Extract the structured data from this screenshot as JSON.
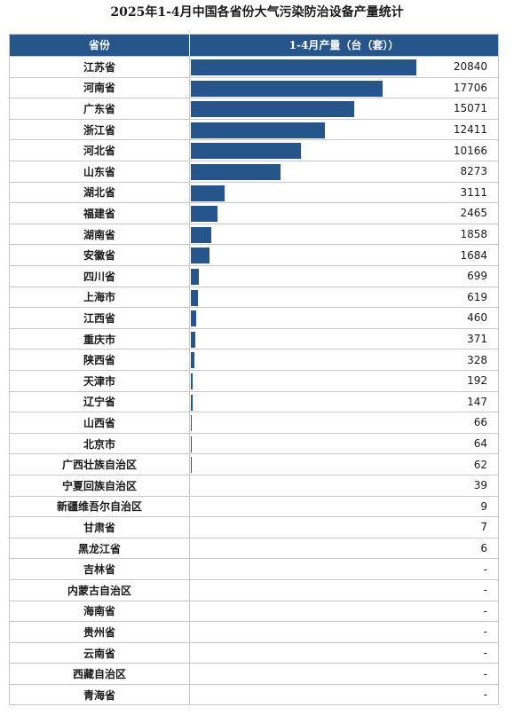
{
  "title": "2025年1-4月中国各省份大气污染防治设备产量统计",
  "table": {
    "col_province": "省份",
    "col_value": "1-4月产量（台（套））"
  },
  "colors": {
    "bar": "#25558a",
    "header": "#25558a"
  },
  "chart_data": {
    "type": "bar",
    "orientation": "horizontal",
    "title": "2025年1-4月中国各省份大气污染防治设备产量统计",
    "xlabel": "1-4月产量（台（套））",
    "ylabel": "省份",
    "xlim": [
      0,
      20840
    ],
    "rows": [
      {
        "province": "江苏省",
        "value": 20840,
        "label": "20840"
      },
      {
        "province": "河南省",
        "value": 17706,
        "label": "17706"
      },
      {
        "province": "广东省",
        "value": 15071,
        "label": "15071"
      },
      {
        "province": "浙江省",
        "value": 12411,
        "label": "12411"
      },
      {
        "province": "河北省",
        "value": 10166,
        "label": "10166"
      },
      {
        "province": "山东省",
        "value": 8273,
        "label": "8273"
      },
      {
        "province": "湖北省",
        "value": 3111,
        "label": "3111"
      },
      {
        "province": "福建省",
        "value": 2465,
        "label": "2465"
      },
      {
        "province": "湖南省",
        "value": 1858,
        "label": "1858"
      },
      {
        "province": "安徽省",
        "value": 1684,
        "label": "1684"
      },
      {
        "province": "四川省",
        "value": 699,
        "label": "699"
      },
      {
        "province": "上海市",
        "value": 619,
        "label": "619"
      },
      {
        "province": "江西省",
        "value": 460,
        "label": "460"
      },
      {
        "province": "重庆市",
        "value": 371,
        "label": "371"
      },
      {
        "province": "陕西省",
        "value": 328,
        "label": "328"
      },
      {
        "province": "天津市",
        "value": 192,
        "label": "192"
      },
      {
        "province": "辽宁省",
        "value": 147,
        "label": "147"
      },
      {
        "province": "山西省",
        "value": 66,
        "label": "66"
      },
      {
        "province": "北京市",
        "value": 64,
        "label": "64"
      },
      {
        "province": "广西壮族自治区",
        "value": 62,
        "label": "62"
      },
      {
        "province": "宁夏回族自治区",
        "value": 39,
        "label": "39"
      },
      {
        "province": "新疆维吾尔自治区",
        "value": 9,
        "label": "9"
      },
      {
        "province": "甘肃省",
        "value": 7,
        "label": "7"
      },
      {
        "province": "黑龙江省",
        "value": 6,
        "label": "6"
      },
      {
        "province": "吉林省",
        "value": null,
        "label": "-"
      },
      {
        "province": "内蒙古自治区",
        "value": null,
        "label": "-"
      },
      {
        "province": "海南省",
        "value": null,
        "label": "-"
      },
      {
        "province": "贵州省",
        "value": null,
        "label": "-"
      },
      {
        "province": "云南省",
        "value": null,
        "label": "-"
      },
      {
        "province": "西藏自治区",
        "value": null,
        "label": "-"
      },
      {
        "province": "青海省",
        "value": null,
        "label": "-"
      }
    ]
  }
}
